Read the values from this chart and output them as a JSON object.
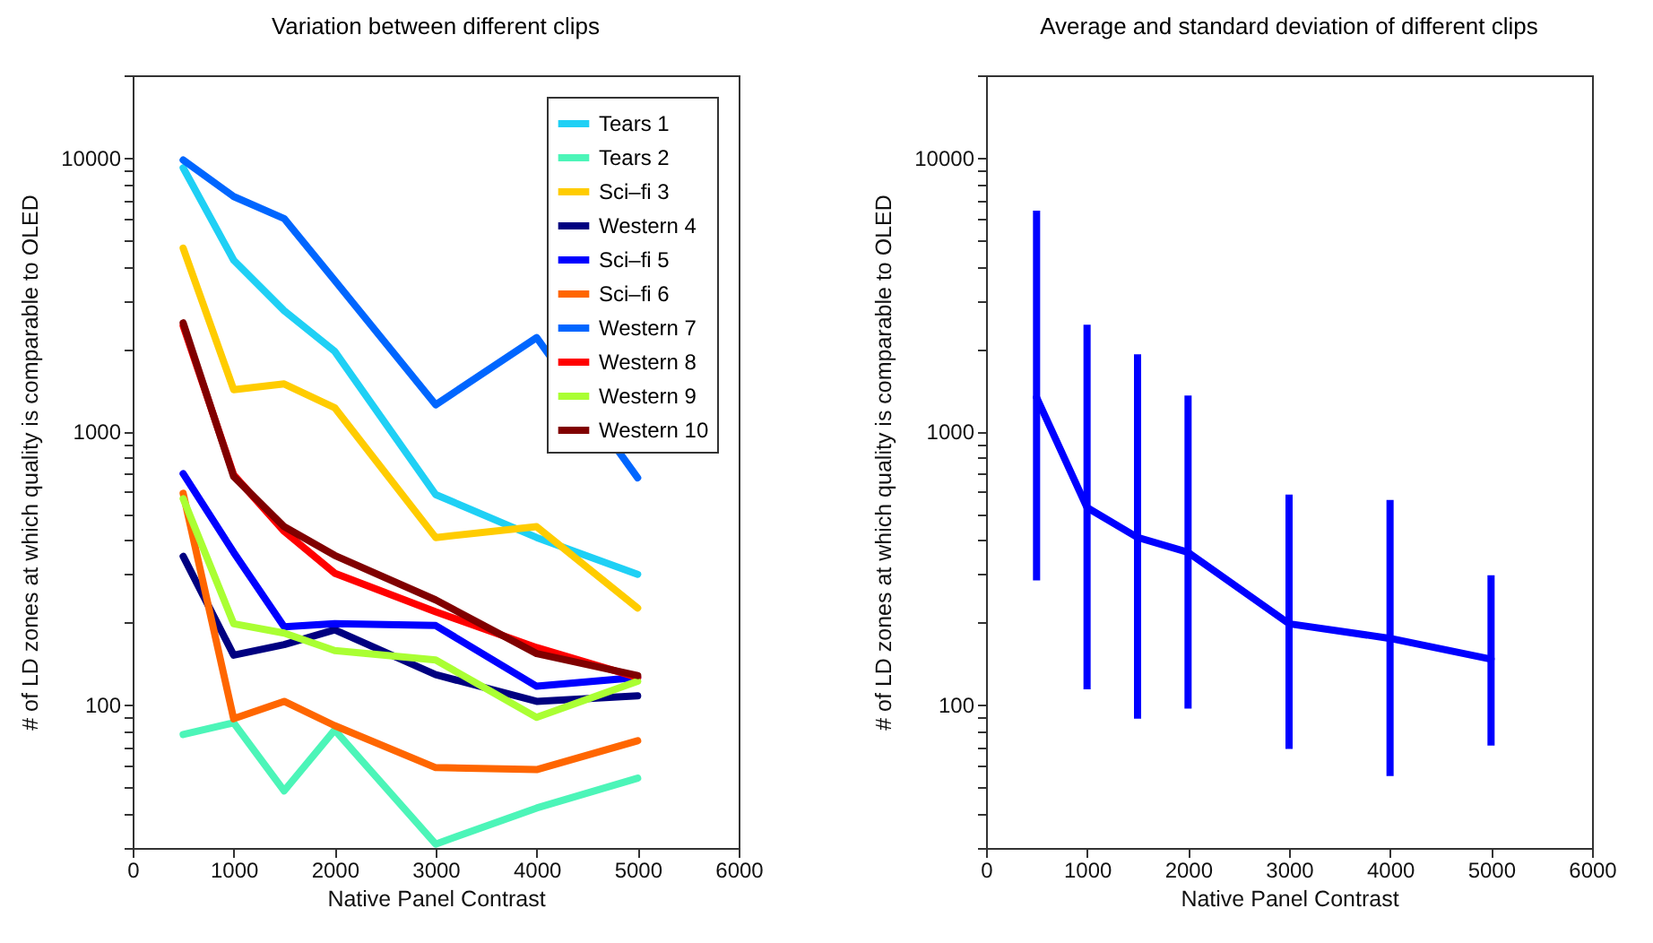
{
  "chart_data": [
    {
      "type": "line",
      "title": "Variation between different clips",
      "xlabel": "Native Panel Contrast",
      "ylabel": "# of LD zones at which quality is comparable to OLED",
      "x": [
        500,
        1000,
        1500,
        2000,
        3000,
        4000,
        5000
      ],
      "xlim": [
        0,
        6000
      ],
      "xticks": [
        0,
        1000,
        2000,
        3000,
        4000,
        5000,
        6000
      ],
      "log": true,
      "ylim": [
        30,
        20000
      ],
      "yticks": [
        {
          "value": 30,
          "label": null
        },
        {
          "value": 40,
          "label": null
        },
        {
          "value": 50,
          "label": null
        },
        {
          "value": 60,
          "label": null
        },
        {
          "value": 70,
          "label": null
        },
        {
          "value": 80,
          "label": null
        },
        {
          "value": 90,
          "label": null
        },
        100,
        {
          "value": 200,
          "label": null
        },
        {
          "value": 300,
          "label": null
        },
        {
          "value": 400,
          "label": null
        },
        {
          "value": 500,
          "label": null
        },
        {
          "value": 600,
          "label": null
        },
        {
          "value": 700,
          "label": null
        },
        {
          "value": 800,
          "label": null
        },
        {
          "value": 900,
          "label": null
        },
        1000,
        {
          "value": 2000,
          "label": null
        },
        {
          "value": 3000,
          "label": null
        },
        {
          "value": 4000,
          "label": null
        },
        {
          "value": 5000,
          "label": null
        },
        {
          "value": 6000,
          "label": null
        },
        {
          "value": 7000,
          "label": null
        },
        {
          "value": 8000,
          "label": null
        },
        {
          "value": 9000,
          "label": null
        },
        10000,
        {
          "value": 20000,
          "label": null
        }
      ],
      "grid": false,
      "legend": "top right",
      "marker": "none",
      "line_style": "solid",
      "series": [
        {
          "name": "Tears 1",
          "color": "#1fd0f5",
          "values": [
            9180,
            4220,
            2760,
            1960,
            587,
            409,
            300
          ]
        },
        {
          "name": "Tears 2",
          "color": "#4cf5b8",
          "values": [
            78,
            86,
            48.5,
            81,
            31,
            42,
            54
          ]
        },
        {
          "name": "Sci–fi 3",
          "color": "#ffcc00",
          "values": [
            4670,
            1420,
            1490,
            1220,
            409,
            448,
            226
          ]
        },
        {
          "name": "Western 4",
          "color": "#000080",
          "values": [
            349,
            152,
            166,
            188,
            129,
            103,
            108
          ]
        },
        {
          "name": "Sci–fi 5",
          "color": "#0000ff",
          "values": [
            700,
            361,
            193,
            198,
            195,
            117,
            126
          ]
        },
        {
          "name": "Sci–fi 6",
          "color": "#ff6600",
          "values": [
            593,
            89,
            103,
            84,
            59,
            58,
            74
          ]
        },
        {
          "name": "Western 7",
          "color": "#0066ff",
          "values": [
            9800,
            7210,
            5990,
            3560,
            1250,
            2200,
            676
          ]
        },
        {
          "name": "Western 8",
          "color": "#ff0000",
          "values": [
            2430,
            693,
            431,
            303,
            219,
            162,
            126
          ]
        },
        {
          "name": "Western 9",
          "color": "#aaff33",
          "values": [
            567,
            198,
            183,
            158,
            146,
            90,
            122
          ]
        },
        {
          "name": "Western 10",
          "color": "#800000",
          "values": [
            2490,
            683,
            448,
            352,
            242,
            154,
            128
          ]
        }
      ]
    },
    {
      "type": "line",
      "title": "Average and standard deviation of different clips",
      "xlabel": "Native Panel Contrast",
      "ylabel": "# of LD zones at which quality is comparable to OLED",
      "x": [
        500,
        1000,
        1500,
        2000,
        3000,
        4000,
        5000
      ],
      "xlim": [
        0,
        6000
      ],
      "xticks": [
        0,
        1000,
        2000,
        3000,
        4000,
        5000,
        6000
      ],
      "log": true,
      "ylim": [
        30,
        20000
      ],
      "yticks": [
        {
          "value": 30,
          "label": null
        },
        {
          "value": 40,
          "label": null
        },
        {
          "value": 50,
          "label": null
        },
        {
          "value": 60,
          "label": null
        },
        {
          "value": 70,
          "label": null
        },
        {
          "value": 80,
          "label": null
        },
        {
          "value": 90,
          "label": null
        },
        100,
        {
          "value": 200,
          "label": null
        },
        {
          "value": 300,
          "label": null
        },
        {
          "value": 400,
          "label": null
        },
        {
          "value": 500,
          "label": null
        },
        {
          "value": 600,
          "label": null
        },
        {
          "value": 700,
          "label": null
        },
        {
          "value": 800,
          "label": null
        },
        {
          "value": 900,
          "label": null
        },
        1000,
        {
          "value": 2000,
          "label": null
        },
        {
          "value": 3000,
          "label": null
        },
        {
          "value": 4000,
          "label": null
        },
        {
          "value": 5000,
          "label": null
        },
        {
          "value": 6000,
          "label": null
        },
        {
          "value": 7000,
          "label": null
        },
        {
          "value": 8000,
          "label": null
        },
        {
          "value": 9000,
          "label": null
        },
        10000,
        {
          "value": 20000,
          "label": null
        }
      ],
      "grid": false,
      "marker": "none",
      "line_style": "solid",
      "series": [
        {
          "color": "#0000ff",
          "values": [
            1330,
            526,
            409,
            361,
            198,
            175,
            147
          ],
          "errors": [
            [
              285,
              6400
            ],
            [
              114,
              2450
            ],
            [
              89,
              1910
            ],
            [
              97,
              1350
            ],
            [
              69,
              587
            ],
            [
              55,
              561
            ],
            [
              71,
              298
            ]
          ]
        }
      ]
    }
  ]
}
